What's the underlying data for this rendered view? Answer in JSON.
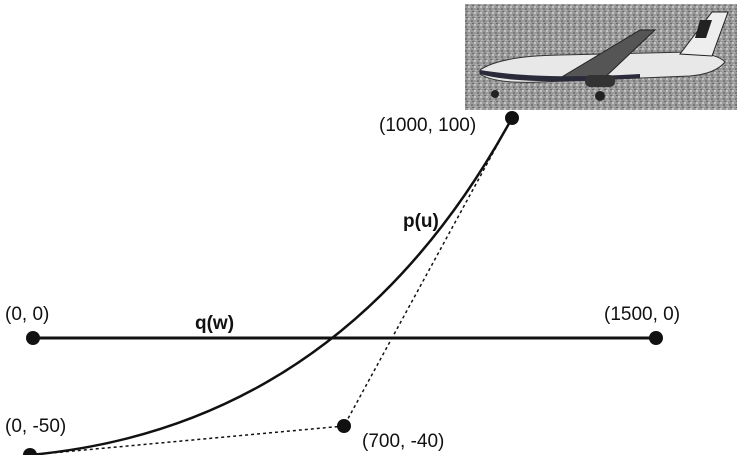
{
  "points": [
    {
      "label": "(0, 0)"
    },
    {
      "label": "(1500, 0)"
    },
    {
      "label": "(0, -50)"
    },
    {
      "label": "(700, -40)"
    },
    {
      "label": "(1000, 100)"
    }
  ],
  "curves": [
    {
      "label": "q(w)"
    },
    {
      "label": "p(u)"
    }
  ]
}
